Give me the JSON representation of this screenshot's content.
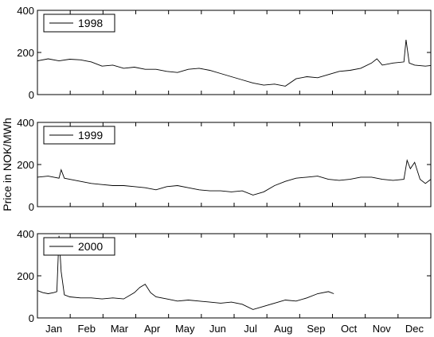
{
  "chart_data": {
    "type": "line",
    "ylabel": "Price in NOK/MWh",
    "x_ticks": [
      "Jan",
      "Feb",
      "Mar",
      "Apr",
      "May",
      "Jun",
      "Jul",
      "Aug",
      "Sep",
      "Oct",
      "Nov",
      "Dec"
    ],
    "y_ticks": [
      0,
      200,
      400
    ],
    "ylim": [
      0,
      400
    ],
    "x_unit": "day of year",
    "xlim": [
      0,
      365
    ],
    "grid": false,
    "legend_position": "top-left",
    "colors": {
      "line": "#000000",
      "axes": "#000000",
      "background": "#ffffff"
    },
    "panels": [
      {
        "name": "1998",
        "x": [
          0,
          10,
          20,
          30,
          40,
          50,
          60,
          70,
          80,
          90,
          100,
          110,
          120,
          130,
          140,
          150,
          160,
          170,
          180,
          190,
          200,
          210,
          220,
          230,
          240,
          250,
          260,
          270,
          280,
          290,
          300,
          310,
          315,
          320,
          330,
          340,
          342,
          345,
          350,
          360,
          365
        ],
        "values": [
          160,
          170,
          160,
          168,
          165,
          155,
          135,
          140,
          125,
          130,
          120,
          120,
          110,
          105,
          120,
          125,
          115,
          100,
          85,
          70,
          55,
          45,
          50,
          40,
          75,
          85,
          80,
          95,
          110,
          115,
          125,
          150,
          170,
          140,
          150,
          155,
          260,
          150,
          140,
          135,
          138
        ]
      },
      {
        "name": "1999",
        "x": [
          0,
          10,
          20,
          22,
          25,
          30,
          40,
          50,
          60,
          70,
          80,
          90,
          100,
          110,
          120,
          130,
          140,
          150,
          160,
          170,
          180,
          190,
          200,
          210,
          220,
          230,
          240,
          250,
          260,
          270,
          280,
          290,
          300,
          310,
          320,
          330,
          340,
          343,
          346,
          350,
          355,
          360,
          365
        ],
        "values": [
          140,
          145,
          135,
          175,
          135,
          130,
          120,
          110,
          105,
          100,
          100,
          95,
          90,
          80,
          95,
          100,
          90,
          80,
          75,
          75,
          70,
          75,
          55,
          70,
          100,
          120,
          135,
          140,
          145,
          130,
          125,
          130,
          140,
          140,
          130,
          125,
          130,
          220,
          180,
          210,
          130,
          110,
          130
        ]
      },
      {
        "name": "2000",
        "x": [
          0,
          5,
          10,
          15,
          18,
          20,
          22,
          25,
          30,
          40,
          50,
          60,
          70,
          80,
          90,
          95,
          100,
          105,
          110,
          120,
          130,
          140,
          150,
          160,
          170,
          180,
          190,
          200,
          210,
          220,
          230,
          240,
          250,
          260,
          270,
          275
        ],
        "values": [
          130,
          120,
          115,
          120,
          125,
          390,
          220,
          110,
          100,
          95,
          95,
          90,
          95,
          90,
          120,
          145,
          160,
          120,
          100,
          90,
          80,
          85,
          80,
          75,
          70,
          75,
          65,
          40,
          55,
          70,
          85,
          80,
          95,
          115,
          125,
          115
        ]
      }
    ]
  }
}
